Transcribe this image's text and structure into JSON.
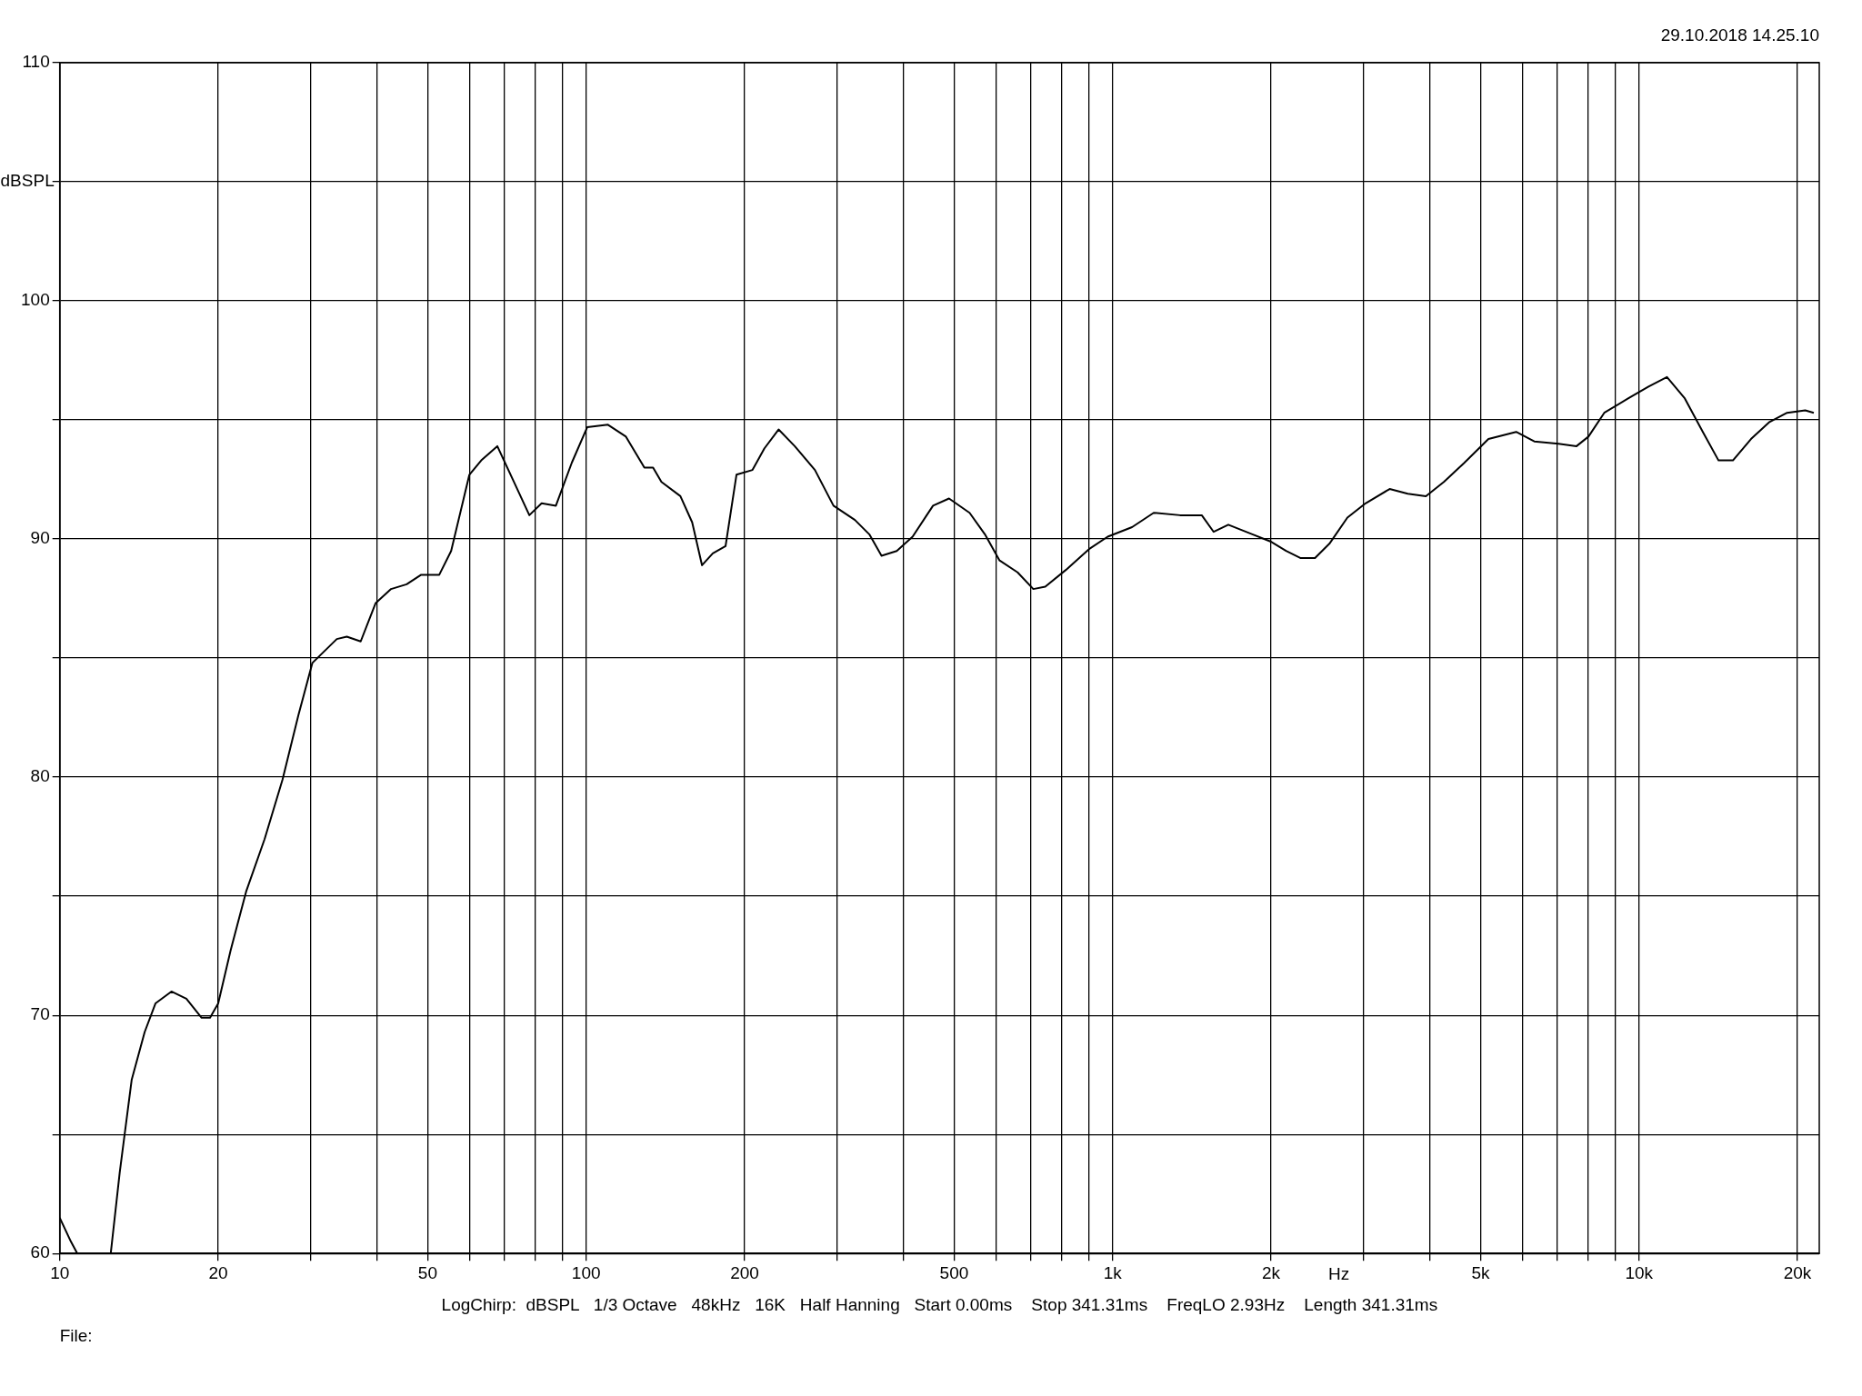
{
  "chart_data": {
    "type": "line",
    "xlabel": "Hz",
    "ylabel": "dBSPL",
    "annotations": [
      "29.10.2018 14.25.10",
      "LogChirp:  dBSPL   1/3 Octave   48kHz   16K   Half Hanning   Start 0.00ms    Stop 341.31ms    FreqLO 2.93Hz    Length 341.31ms",
      "File:"
    ],
    "x": [
      10,
      10.5,
      10.8,
      11.5,
      12.5,
      13,
      13.7,
      14.5,
      15.2,
      16.3,
      17.4,
      18.6,
      19.3,
      20,
      21.1,
      22.6,
      24.5,
      26.5,
      28.4,
      30.2,
      33.6,
      35.1,
      37.3,
      39.8,
      42.6,
      45.6,
      48.6,
      52.6,
      55.4,
      60,
      63.2,
      67.8,
      72.9,
      78,
      82.3,
      87.6,
      93.9,
      100.5,
      110,
      119,
      129,
      134,
      139,
      151,
      159,
      166,
      174,
      184,
      193,
      207,
      218,
      232,
      249,
      272,
      295,
      324,
      345,
      364,
      389,
      417,
      456,
      489,
      535,
      572,
      610,
      660,
      707,
      745,
      815,
      905,
      979,
      1089,
      1197,
      1343,
      1477,
      1556,
      1659,
      1843,
      1994,
      2136,
      2277,
      2424,
      2581,
      2793,
      3024,
      3360,
      3637,
      3937,
      4259,
      4657,
      5176,
      5843,
      6325,
      7031,
      7609,
      8017,
      8590,
      9535,
      10425,
      11300,
      12220,
      13220,
      14160,
      15080,
      16320,
      17660,
      19110,
      20690,
      21480
    ],
    "values": [
      61.5,
      60.5,
      60.0,
      null,
      60.0,
      63.4,
      67.3,
      69.3,
      70.5,
      71.0,
      70.7,
      69.9,
      69.9,
      70.5,
      72.7,
      75.2,
      77.4,
      79.9,
      82.6,
      84.8,
      85.8,
      85.9,
      85.7,
      87.3,
      87.9,
      88.1,
      88.5,
      88.5,
      89.5,
      92.7,
      93.3,
      93.9,
      92.4,
      91.0,
      91.5,
      91.4,
      93.2,
      94.7,
      94.8,
      94.3,
      93.0,
      93.0,
      92.4,
      91.8,
      90.7,
      88.9,
      89.4,
      89.7,
      92.7,
      92.9,
      93.8,
      94.6,
      93.9,
      92.9,
      91.4,
      90.8,
      90.2,
      89.3,
      89.5,
      90.1,
      91.4,
      91.7,
      91.1,
      90.2,
      89.1,
      88.6,
      87.9,
      88.0,
      88.7,
      89.6,
      90.1,
      90.5,
      91.1,
      91.0,
      91.0,
      90.3,
      90.6,
      90.2,
      89.9,
      89.5,
      89.2,
      89.2,
      89.8,
      90.9,
      91.5,
      92.1,
      91.9,
      91.8,
      92.4,
      93.2,
      94.2,
      94.5,
      94.1,
      94.0,
      93.9,
      94.3,
      95.3,
      95.9,
      96.4,
      96.8,
      95.9,
      94.5,
      93.3,
      93.3,
      94.2,
      94.9,
      95.3,
      95.4,
      95.3
    ],
    "color": "#000000",
    "log": "x",
    "grid": true,
    "legend": false,
    "marker": "none",
    "line_style": "solid",
    "xlim": [
      10,
      22000
    ],
    "xticks": [
      10,
      20,
      {
        "value": 30,
        "label": null
      },
      {
        "value": 40,
        "label": null
      },
      50,
      {
        "value": 60,
        "label": null
      },
      {
        "value": 70,
        "label": null
      },
      {
        "value": 80,
        "label": null
      },
      {
        "value": 90,
        "label": null
      },
      100,
      200,
      {
        "value": 300,
        "label": null
      },
      {
        "value": 400,
        "label": null
      },
      500,
      {
        "value": 600,
        "label": null
      },
      {
        "value": 700,
        "label": null
      },
      {
        "value": 800,
        "label": null
      },
      {
        "value": 900,
        "label": null
      },
      {
        "value": 1000,
        "label": "1k"
      },
      {
        "value": 2000,
        "label": "2k"
      },
      {
        "value": 3000,
        "label": null
      },
      {
        "value": 4000,
        "label": null
      },
      {
        "value": 5000,
        "label": "5k"
      },
      {
        "value": 6000,
        "label": null
      },
      {
        "value": 7000,
        "label": null
      },
      {
        "value": 8000,
        "label": null
      },
      {
        "value": 9000,
        "label": null
      },
      {
        "value": 10000,
        "label": "10k"
      },
      {
        "value": 20000,
        "label": "20k"
      }
    ],
    "ylim": [
      60,
      110
    ],
    "yticks": [
      60,
      {
        "value": 65,
        "label": null
      },
      70,
      {
        "value": 75,
        "label": null
      },
      80,
      {
        "value": 85,
        "label": null
      },
      90,
      {
        "value": 95,
        "label": null
      },
      100,
      {
        "value": 105,
        "label": null
      },
      110
    ]
  }
}
